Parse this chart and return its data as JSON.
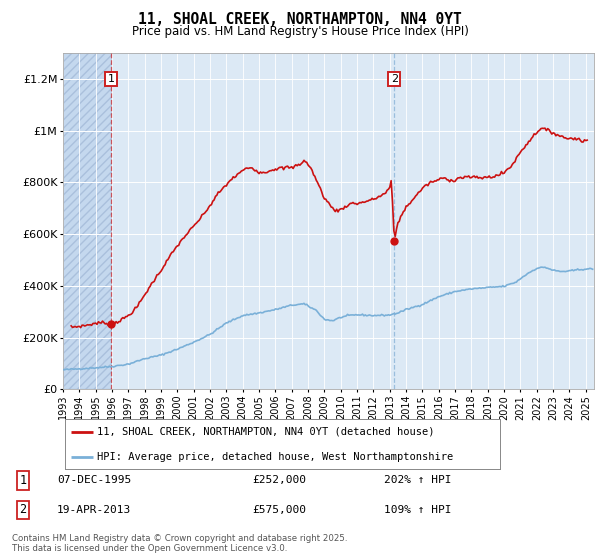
{
  "title": "11, SHOAL CREEK, NORTHAMPTON, NN4 0YT",
  "subtitle": "Price paid vs. HM Land Registry's House Price Index (HPI)",
  "ylabel_ticks": [
    "£0",
    "£200K",
    "£400K",
    "£600K",
    "£800K",
    "£1M",
    "£1.2M"
  ],
  "ylim": [
    0,
    1300000
  ],
  "xlim_start": 1993.0,
  "xlim_end": 2025.5,
  "background_color": "#ffffff",
  "plot_bg_color": "#dce9f5",
  "grid_color": "#ffffff",
  "purchase1_date": 1995.93,
  "purchase1_price": 252000,
  "purchase2_date": 2013.28,
  "purchase2_price": 575000,
  "hpi_line_color": "#7ab0d8",
  "price_line_color": "#cc1111",
  "legend_label_price": "11, SHOAL CREEK, NORTHAMPTON, NN4 0YT (detached house)",
  "legend_label_hpi": "HPI: Average price, detached house, West Northamptonshire",
  "footer": "Contains HM Land Registry data © Crown copyright and database right 2025.\nThis data is licensed under the Open Government Licence v3.0."
}
